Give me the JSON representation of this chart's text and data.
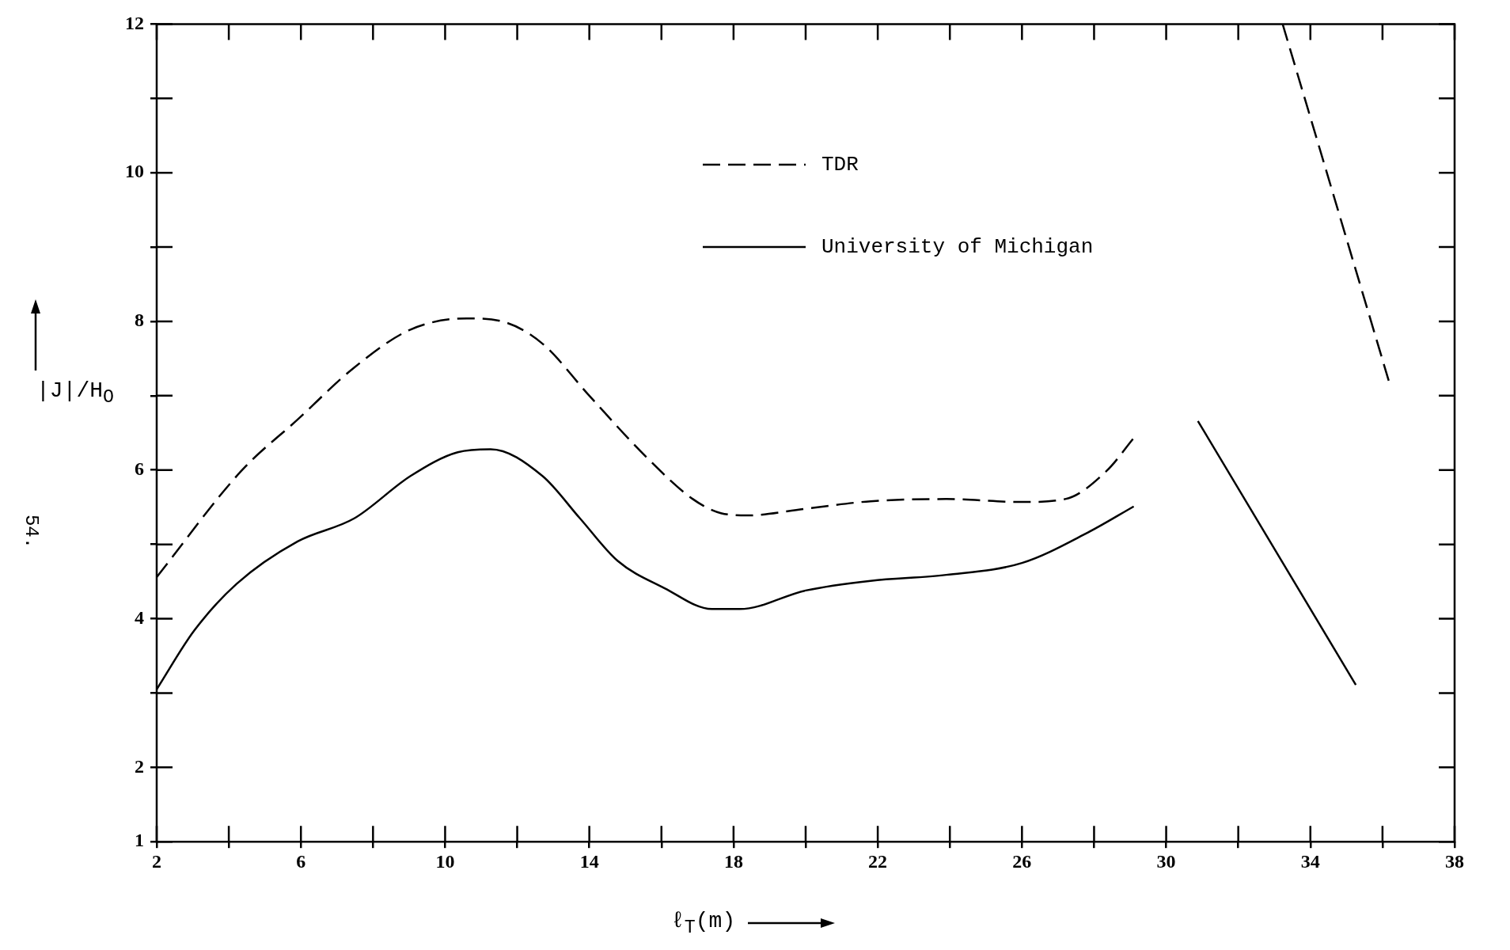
{
  "chart_data": {
    "type": "line",
    "xlabel": "ℓ$_{T}$(m)",
    "ylabel": "|J|/H$_{O}$",
    "annotations": [
      "54."
    ],
    "xlim": [
      2,
      38
    ],
    "ylim": [
      1,
      12
    ],
    "xticks": [
      2,
      {
        "value": 4,
        "label": null
      },
      6,
      {
        "value": 8,
        "label": null
      },
      10,
      {
        "value": 12,
        "label": null
      },
      14,
      {
        "value": 16,
        "label": null
      },
      18,
      {
        "value": 20,
        "label": null
      },
      22,
      {
        "value": 24,
        "label": null
      },
      26,
      {
        "value": 28,
        "label": null
      },
      30,
      {
        "value": 32,
        "label": null
      },
      34,
      {
        "value": 36,
        "label": null
      },
      38
    ],
    "yticks": [
      1,
      2,
      {
        "value": 3,
        "label": null
      },
      4,
      {
        "value": 5,
        "label": null
      },
      6,
      {
        "value": 7,
        "label": null
      },
      8,
      {
        "value": 9,
        "label": null
      },
      10,
      {
        "value": 11,
        "label": null
      },
      12
    ],
    "grid": false,
    "legend": "top",
    "marker": "none",
    "series": [
      {
        "name": "TDR",
        "color": "#000000",
        "line_style": "dashed",
        "x": [
          2,
          4.35,
          5.91,
          7.48,
          9.04,
          10.6,
          11.65,
          12.7,
          14.0,
          15.57,
          16.87,
          17.65,
          18.4,
          20.0,
          21.8,
          23.9,
          26.0,
          27.2,
          28.35,
          29.1,
          31,
          33.23,
          36.18
        ],
        "values": [
          4.56,
          5.99,
          6.68,
          7.38,
          7.89,
          8.04,
          7.99,
          7.7,
          7.0,
          6.18,
          5.61,
          5.42,
          5.39,
          5.48,
          5.58,
          5.61,
          5.57,
          5.61,
          5.99,
          6.43,
          null,
          12,
          7.19
        ]
      },
      {
        "name": "University of Michigan",
        "color": "#000000",
        "line_style": "solid",
        "x": [
          2,
          3.04,
          4.22,
          5.91,
          7.48,
          9.04,
          10.35,
          11.26,
          12.7,
          13.74,
          14.78,
          16.09,
          17.4,
          18.17,
          20.0,
          21.8,
          23.9,
          26.0,
          27.83,
          29.1,
          30,
          30.88,
          35.26
        ],
        "values": [
          3.05,
          3.84,
          4.47,
          5.04,
          5.35,
          5.92,
          6.24,
          6.28,
          5.92,
          5.35,
          4.78,
          4.41,
          4.13,
          4.13,
          4.38,
          4.51,
          4.59,
          4.75,
          5.16,
          5.51,
          null,
          6.66,
          3.11
        ]
      }
    ]
  }
}
